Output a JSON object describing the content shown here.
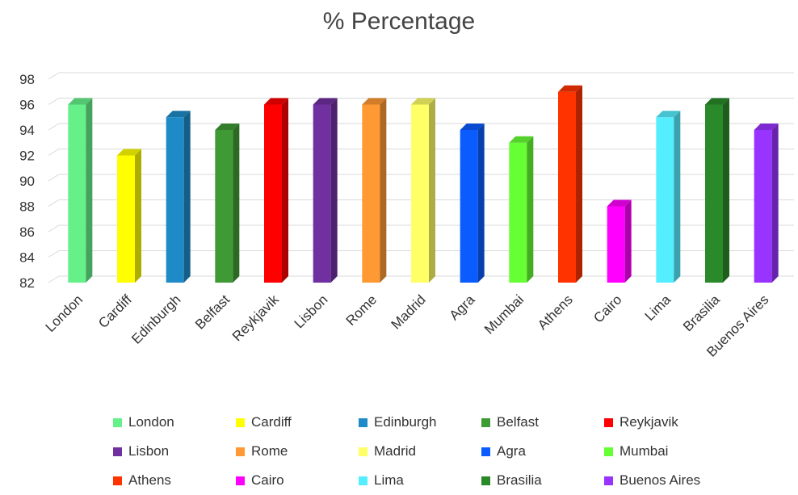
{
  "chart_data": {
    "type": "bar",
    "title": "% Percentage",
    "categories": [
      "London",
      "Cardiff",
      "Edinburgh",
      "Belfast",
      "Reykjavik",
      "Lisbon",
      "Rome",
      "Madrid",
      "Agra",
      "Mumbai",
      "Athens",
      "Cairo",
      "Lima",
      "Brasilia",
      "Buenos Aires"
    ],
    "values": [
      96,
      92,
      95,
      94,
      96,
      96,
      96,
      96,
      94,
      93,
      97,
      88,
      95,
      96,
      94
    ],
    "colors": [
      "#66f08a",
      "#ffff00",
      "#1e8bc8",
      "#3f9a35",
      "#ff0000",
      "#7030a0",
      "#ff9933",
      "#ffff66",
      "#0a5cff",
      "#66ff33",
      "#ff3300",
      "#ff00ff",
      "#55eeff",
      "#2a8a2a",
      "#9933ff"
    ],
    "ylim": [
      82,
      98
    ],
    "yticks": [
      82,
      84,
      86,
      88,
      90,
      92,
      94,
      96,
      98
    ],
    "grid": true,
    "legend": "bottom",
    "xlabel": "",
    "ylabel": ""
  }
}
